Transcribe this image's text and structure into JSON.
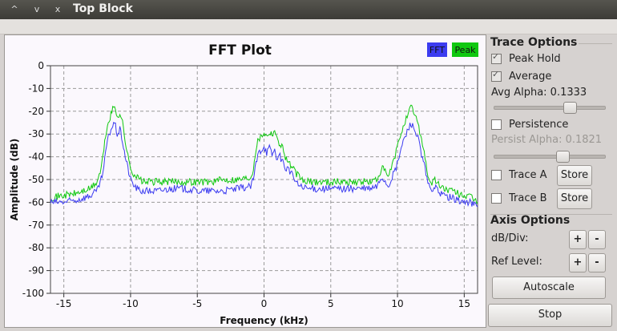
{
  "window": {
    "title": "Top Block",
    "controls": [
      "^",
      "v",
      "x"
    ]
  },
  "plot": {
    "legend": [
      {
        "label": "FFT",
        "color": "#3c3cf0"
      },
      {
        "label": "Peak",
        "color": "#10c810"
      }
    ]
  },
  "chart_data": {
    "type": "line",
    "title": "FFT Plot",
    "xlabel": "Frequency (kHz)",
    "ylabel": "Amplitude (dB)",
    "xlim": [
      -16,
      16
    ],
    "ylim": [
      -100,
      0
    ],
    "x_ticks": [
      "-15",
      "-10",
      "-5",
      "0",
      "5",
      "10",
      "15"
    ],
    "y_ticks": [
      "0",
      "-10",
      "-20",
      "-30",
      "-40",
      "-50",
      "-60",
      "-70",
      "-80",
      "-90",
      "-100"
    ],
    "grid": true,
    "legend_position": "top-right",
    "series": [
      {
        "name": "FFT",
        "color": "#3c3cf0",
        "x": [
          -16,
          -15,
          -14,
          -13.5,
          -13,
          -12.5,
          -12.2,
          -12,
          -11.8,
          -11.6,
          -11.4,
          -11.2,
          -11,
          -10.8,
          -10.6,
          -10.4,
          -10.2,
          -10,
          -9.7,
          -9.3,
          -9,
          -8,
          -7,
          -6,
          -5,
          -4,
          -3,
          -2,
          -1,
          -0.8,
          -0.6,
          -0.4,
          -0.2,
          0,
          0.2,
          0.4,
          0.6,
          0.8,
          1,
          1.2,
          1.4,
          1.6,
          1.8,
          2,
          2.5,
          3,
          4,
          5,
          6,
          7,
          8,
          8.5,
          8.8,
          9,
          9.3,
          9.6,
          9.9,
          10.2,
          10.5,
          10.8,
          11,
          11.2,
          11.4,
          11.6,
          11.8,
          12,
          12.2,
          12.5,
          12.8,
          13,
          13.5,
          14,
          14.5,
          15,
          15.5,
          16
        ],
        "y": [
          -60,
          -60,
          -59,
          -58,
          -57,
          -55,
          -50,
          -45,
          -35,
          -30,
          -27,
          -25,
          -30,
          -28,
          -33,
          -40,
          -45,
          -50,
          -53,
          -55,
          -55,
          -55,
          -54,
          -54,
          -55,
          -55,
          -55,
          -54,
          -53,
          -50,
          -43,
          -38,
          -37,
          -35,
          -38,
          -36,
          -39,
          -37,
          -41,
          -40,
          -42,
          -45,
          -45,
          -47,
          -52,
          -54,
          -54,
          -54,
          -54,
          -54,
          -54,
          -53,
          -49,
          -50,
          -53,
          -49,
          -45,
          -38,
          -32,
          -28,
          -25,
          -27,
          -30,
          -33,
          -40,
          -43,
          -50,
          -55,
          -53,
          -55,
          -57,
          -58,
          -59,
          -60,
          -60,
          -62
        ]
      },
      {
        "name": "Peak",
        "color": "#10c810",
        "x": [
          -16,
          -15,
          -14,
          -13.5,
          -13,
          -12.5,
          -12.2,
          -12,
          -11.8,
          -11.6,
          -11.4,
          -11.2,
          -11,
          -10.8,
          -10.6,
          -10.4,
          -10.2,
          -10,
          -9.7,
          -9.3,
          -9,
          -8,
          -7,
          -6,
          -5,
          -4,
          -3,
          -2,
          -1,
          -0.8,
          -0.6,
          -0.4,
          -0.2,
          0,
          0.2,
          0.4,
          0.6,
          0.8,
          1,
          1.2,
          1.4,
          1.6,
          1.8,
          2,
          2.5,
          3,
          4,
          5,
          6,
          7,
          8,
          8.5,
          8.8,
          9,
          9.3,
          9.6,
          9.9,
          10.2,
          10.5,
          10.8,
          11,
          11.2,
          11.4,
          11.6,
          11.8,
          12,
          12.2,
          12.5,
          12.8,
          13,
          13.5,
          14,
          14.5,
          15,
          15.5,
          16
        ],
        "y": [
          -58,
          -57,
          -56,
          -55,
          -54,
          -51,
          -45,
          -37,
          -28,
          -24,
          -20,
          -18,
          -22,
          -21,
          -25,
          -33,
          -40,
          -45,
          -48,
          -50,
          -51,
          -51,
          -51,
          -51,
          -51,
          -51,
          -50,
          -50,
          -49,
          -45,
          -36,
          -32,
          -31,
          -29,
          -31,
          -29,
          -30,
          -28,
          -33,
          -34,
          -36,
          -40,
          -42,
          -44,
          -48,
          -51,
          -51,
          -51,
          -51,
          -51,
          -51,
          -50,
          -45,
          -46,
          -49,
          -44,
          -38,
          -31,
          -25,
          -22,
          -18,
          -20,
          -23,
          -27,
          -32,
          -38,
          -46,
          -52,
          -50,
          -52,
          -54,
          -55,
          -56,
          -57,
          -58,
          -60
        ]
      }
    ]
  },
  "trace_options": {
    "title": "Trace Options",
    "peak_hold": {
      "label": "Peak Hold",
      "checked": true
    },
    "average": {
      "label": "Average",
      "checked": true
    },
    "avg_alpha": {
      "label": "Avg Alpha: 0.1333",
      "value": 0.1333
    },
    "persistence": {
      "label": "Persistence",
      "checked": false
    },
    "persist_alpha": {
      "label": "Persist Alpha: 0.1821",
      "value": 0.1821
    },
    "trace_a": {
      "label": "Trace A",
      "store": "Store",
      "checked": false
    },
    "trace_b": {
      "label": "Trace B",
      "store": "Store",
      "checked": false
    }
  },
  "axis_options": {
    "title": "Axis Options",
    "db_div": {
      "label": "dB/Div:",
      "plus": "+",
      "minus": "-"
    },
    "ref_level": {
      "label": "Ref Level:",
      "plus": "+",
      "minus": "-"
    },
    "autoscale": "Autoscale"
  },
  "stop": "Stop"
}
